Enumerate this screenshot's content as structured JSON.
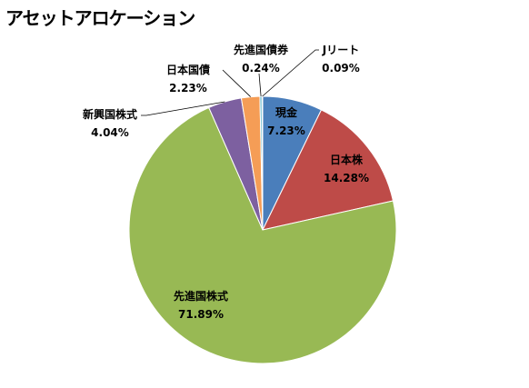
{
  "chart_data": {
    "type": "pie",
    "title": "アセットアロケーション",
    "slices": [
      {
        "label": "現金",
        "value": 7.23,
        "value_label": "7.23%",
        "color": "#4A7EBB"
      },
      {
        "label": "日本株",
        "value": 14.28,
        "value_label": "14.28%",
        "color": "#BE4B48"
      },
      {
        "label": "先進国株式",
        "value": 71.89,
        "value_label": "71.89%",
        "color": "#98B954"
      },
      {
        "label": "新興国株式",
        "value": 4.04,
        "value_label": "4.04%",
        "color": "#7D60A0"
      },
      {
        "label": "日本国債",
        "value": 2.23,
        "value_label": "2.23%",
        "color": "#F59D56"
      },
      {
        "label": "先進国債券",
        "value": 0.24,
        "value_label": "0.24%",
        "color": "#4BACC6"
      },
      {
        "label": "Jリート",
        "value": 0.09,
        "value_label": "0.09%",
        "color": "#F79646"
      }
    ],
    "start_angle": "12 o'clock",
    "direction": "clockwise",
    "legend": "none"
  }
}
